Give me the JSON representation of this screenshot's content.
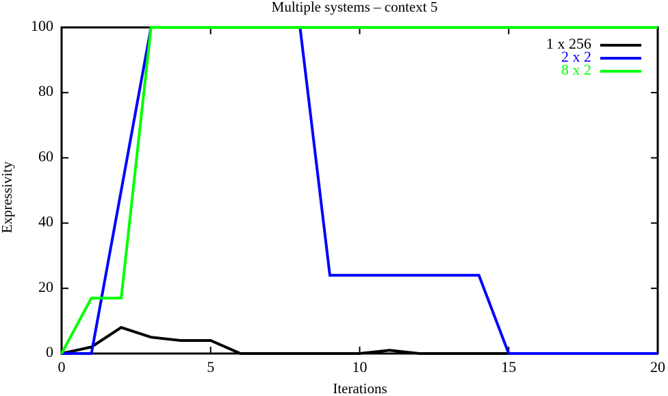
{
  "chart_data": {
    "type": "line",
    "title": "Multiple systems – context 5",
    "x_label": "Iterations",
    "y_label": "Expressivity",
    "x": [
      0,
      1,
      2,
      3,
      4,
      5,
      6,
      7,
      8,
      9,
      10,
      11,
      12,
      13,
      14,
      15,
      16,
      17,
      18,
      19,
      20
    ],
    "series": [
      {
        "name": "1 x 256",
        "color": "#000000",
        "values": [
          0,
          2,
          8,
          5,
          4,
          4,
          0,
          0,
          0,
          0,
          0,
          1,
          0,
          0,
          0,
          0,
          0,
          0,
          0,
          0,
          0
        ]
      },
      {
        "name": "2 x 2",
        "color": "#0000ff",
        "values": [
          0,
          0,
          50,
          100,
          100,
          100,
          100,
          100,
          100,
          24,
          24,
          24,
          24,
          24,
          24,
          0,
          0,
          0,
          0,
          0,
          0
        ]
      },
      {
        "name": "8 x 2",
        "color": "#00ff00",
        "values": [
          0,
          17,
          17,
          100,
          100,
          100,
          100,
          100,
          100,
          100,
          100,
          100,
          100,
          100,
          100,
          100,
          100,
          100,
          100,
          100,
          100
        ]
      }
    ],
    "xlim": [
      0,
      20
    ],
    "xticks": [
      0,
      5,
      10,
      15,
      20
    ],
    "ylim": [
      0,
      100
    ],
    "yticks": [
      0,
      20,
      40,
      60,
      80,
      100
    ],
    "legend": "top right"
  }
}
